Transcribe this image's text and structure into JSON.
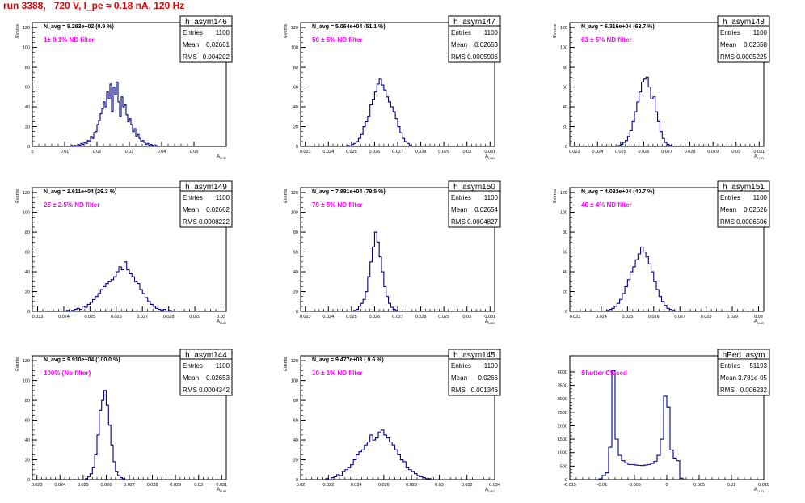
{
  "title": "run 3388,   720 V, I_pe ≈ 0.18 nA, 120 Hz",
  "colors": {
    "hist": "#000080",
    "note": "#ff00ff",
    "title": "#e00000"
  },
  "stat_labels": {
    "entries": "Entries",
    "mean": "Mean",
    "rms": "RMS"
  },
  "chart_data": [
    {
      "type": "histogram",
      "name": "h_asym146",
      "xlabel": "A_LUD",
      "ylabel": "Events",
      "xlim": [
        0,
        0.06
      ],
      "ylim": [
        0,
        125
      ],
      "xticks": [
        "0",
        "0.01",
        "0.02",
        "0.03",
        "0.04",
        "0.05"
      ],
      "yticks": [
        "0",
        "20",
        "40",
        "60",
        "80",
        "100",
        "120"
      ],
      "navg": "N_avg = 9.293e+02 (0.9 %)",
      "note": "1± 0.1% ND filter",
      "stats": {
        "entries": "1100",
        "mean": "0.02661",
        "rms": "0.004202"
      },
      "bins": {
        "x0": 0.012,
        "width": 0.0005,
        "values": [
          1,
          0,
          1,
          0,
          2,
          1,
          3,
          2,
          4,
          3,
          6,
          5,
          10,
          8,
          14,
          15,
          22,
          26,
          33,
          38,
          45,
          40,
          55,
          48,
          63,
          35,
          60,
          52,
          65,
          45,
          30,
          50,
          40,
          42,
          32,
          25,
          28,
          22,
          15,
          18,
          10,
          12,
          8,
          5,
          6,
          4,
          2,
          3,
          1,
          2,
          1,
          0,
          1
        ]
      }
    },
    {
      "type": "histogram",
      "name": "h_asym147",
      "xlabel": "A_LUD",
      "ylabel": "Events",
      "xlim": [
        0.0228,
        0.0312
      ],
      "ylim": [
        0,
        125
      ],
      "xticks": [
        "0.023",
        "0.024",
        "0.025",
        "0.026",
        "0.027",
        "0.028",
        "0.029",
        "0.03",
        "0.031"
      ],
      "yticks": [
        "0",
        "20",
        "40",
        "60",
        "80",
        "100",
        "120"
      ],
      "navg": "N_avg = 5.064e+04 (51.1 %)",
      "note": "50 ± 5% ND filter",
      "stats": {
        "entries": "1100",
        "mean": "0.02653",
        "rms": "0.0005906"
      },
      "bins": {
        "x0": 0.0248,
        "width": 0.0001,
        "values": [
          1,
          0,
          2,
          3,
          5,
          8,
          12,
          20,
          25,
          30,
          42,
          47,
          55,
          63,
          68,
          62,
          57,
          50,
          45,
          40,
          35,
          28,
          20,
          14,
          8,
          5,
          3,
          1
        ]
      }
    },
    {
      "type": "histogram",
      "name": "h_asym148",
      "xlabel": "A_LUD",
      "ylabel": "Events",
      "xlim": [
        0.0228,
        0.0312
      ],
      "ylim": [
        0,
        125
      ],
      "xticks": [
        "0.023",
        "0.024",
        "0.025",
        "0.026",
        "0.027",
        "0.028",
        "0.029",
        "0.03",
        "0.031"
      ],
      "yticks": [
        "0",
        "20",
        "40",
        "60",
        "80",
        "100",
        "120"
      ],
      "navg": "N_avg = 6.316e+04 (63.7 %)",
      "note": "63 ± 5% ND filter",
      "stats": {
        "entries": "1100",
        "mean": "0.02658",
        "rms": "0.0005225"
      },
      "bins": {
        "x0": 0.0249,
        "width": 0.0001,
        "values": [
          1,
          2,
          4,
          6,
          10,
          16,
          25,
          35,
          45,
          55,
          65,
          68,
          70,
          60,
          48,
          50,
          35,
          25,
          15,
          8,
          4,
          2,
          1
        ]
      }
    },
    {
      "type": "histogram",
      "name": "h_asym149",
      "xlabel": "A_LUD",
      "ylabel": "Events",
      "xlim": [
        0.0228,
        0.0302
      ],
      "ylim": [
        0,
        125
      ],
      "xticks": [
        "0.023",
        "0.024",
        "0.025",
        "0.026",
        "0.027",
        "0.028",
        "0.029",
        "0.03"
      ],
      "yticks": [
        "0",
        "20",
        "40",
        "60",
        "80",
        "100",
        "120"
      ],
      "navg": "N_avg = 2.611e+04 (26.3 %)",
      "note": "25 ± 2.5% ND filter",
      "stats": {
        "entries": "1100",
        "mean": "0.02662",
        "rms": "0.0008222"
      },
      "bins": {
        "x0": 0.0241,
        "width": 0.0001,
        "values": [
          1,
          0,
          1,
          2,
          3,
          2,
          5,
          4,
          7,
          9,
          12,
          15,
          18,
          22,
          25,
          28,
          30,
          32,
          35,
          40,
          45,
          42,
          50,
          42,
          38,
          35,
          30,
          28,
          22,
          18,
          14,
          10,
          7,
          5,
          3,
          2,
          1,
          2,
          0,
          1
        ]
      }
    },
    {
      "type": "histogram",
      "name": "h_asym150",
      "xlabel": "A_LUD",
      "ylabel": "Events",
      "xlim": [
        0.0228,
        0.0312
      ],
      "ylim": [
        0,
        125
      ],
      "xticks": [
        "0.023",
        "0.024",
        "0.025",
        "0.026",
        "0.027",
        "0.028",
        "0.029",
        "0.03",
        "0.031"
      ],
      "yticks": [
        "0",
        "20",
        "40",
        "60",
        "80",
        "100",
        "120"
      ],
      "navg": "N_avg = 7.881e+04 (79.5 %)",
      "note": "79 ± 5% ND filter",
      "stats": {
        "entries": "1100",
        "mean": "0.02654",
        "rms": "0.0004827"
      },
      "bins": {
        "x0": 0.0251,
        "width": 0.0001,
        "values": [
          1,
          2,
          5,
          8,
          12,
          20,
          35,
          50,
          65,
          80,
          70,
          55,
          40,
          25,
          15,
          8,
          4,
          2,
          1
        ]
      }
    },
    {
      "type": "histogram",
      "name": "h_asym151",
      "xlabel": "A_LUD",
      "ylabel": "Events",
      "xlim": [
        0.0228,
        0.0302
      ],
      "ylim": [
        0,
        125
      ],
      "xticks": [
        "0.023",
        "0.024",
        "0.025",
        "0.026",
        "0.027",
        "0.028",
        "0.029",
        "0.03"
      ],
      "yticks": [
        "0",
        "20",
        "40",
        "60",
        "80",
        "100",
        "120"
      ],
      "navg": "N_avg = 4.033e+04 (40.7 %)",
      "note": "40 ± 4% ND filter",
      "stats": {
        "entries": "1100",
        "mean": "0.02626",
        "rms": "0.0006506"
      },
      "bins": {
        "x0": 0.0242,
        "width": 0.0001,
        "values": [
          1,
          2,
          3,
          5,
          8,
          12,
          18,
          25,
          32,
          40,
          45,
          52,
          58,
          65,
          60,
          55,
          48,
          40,
          30,
          22,
          15,
          10,
          6,
          3,
          2,
          1
        ]
      }
    },
    {
      "type": "histogram",
      "name": "h_asym144",
      "xlabel": "A_LUD",
      "ylabel": "Events",
      "xlim": [
        0.0228,
        0.0312
      ],
      "ylim": [
        0,
        125
      ],
      "xticks": [
        "0.023",
        "0.024",
        "0.025",
        "0.026",
        "0.027",
        "0.028",
        "0.029",
        "0.03",
        "0.031"
      ],
      "yticks": [
        "0",
        "20",
        "40",
        "60",
        "80",
        "100",
        "120"
      ],
      "navg": "N_avg = 9.910e+04 (100.0 %)",
      "note": "100% (No filter)",
      "stats": {
        "entries": "1100",
        "mean": "0.02653",
        "rms": "0.0004342"
      },
      "bins": {
        "x0": 0.0251,
        "width": 0.0001,
        "values": [
          1,
          3,
          6,
          12,
          25,
          45,
          70,
          80,
          90,
          75,
          55,
          35,
          18,
          8,
          4,
          2,
          1
        ]
      }
    },
    {
      "type": "histogram",
      "name": "h_asym145",
      "xlabel": "A_LUD",
      "ylabel": "Events",
      "xlim": [
        0.02,
        0.034
      ],
      "ylim": [
        0,
        125
      ],
      "xticks": [
        "0.02",
        "0.022",
        "0.024",
        "0.026",
        "0.028",
        "0.03",
        "0.032",
        "0.034"
      ],
      "yticks": [
        "0",
        "20",
        "40",
        "60",
        "80",
        "100",
        "120"
      ],
      "navg": "N_avg = 9.477e+03 ( 9.6 %)",
      "note": "10 ± 1% ND filter",
      "stats": {
        "entries": "1100",
        "mean": "0.0266",
        "rms": "0.001346"
      },
      "bins": {
        "x0": 0.0218,
        "width": 0.0002,
        "values": [
          1,
          0,
          2,
          3,
          5,
          4,
          8,
          10,
          12,
          15,
          20,
          25,
          28,
          30,
          35,
          38,
          45,
          40,
          42,
          48,
          50,
          45,
          42,
          38,
          35,
          30,
          25,
          20,
          18,
          12,
          10,
          8,
          6,
          4,
          3,
          2,
          1,
          1
        ]
      }
    },
    {
      "type": "histogram",
      "name": "hPed_asym",
      "xlabel": "A_LUD",
      "ylabel": "",
      "xlim": [
        -0.015,
        0.015
      ],
      "ylim": [
        0,
        4600
      ],
      "xticks": [
        "-0.015",
        "-0.01",
        "-0.005",
        "0",
        "0.005",
        "0.01",
        "0.015"
      ],
      "yticks": [
        "0",
        "500",
        "1000",
        "1500",
        "2000",
        "2500",
        "3000",
        "3500",
        "4000"
      ],
      "navg": "",
      "note": "Shutter Closed",
      "stats": {
        "entries": "51193",
        "mean": "-3.781e-05",
        "rms": "0.006232"
      },
      "bins": {
        "x0": -0.0105,
        "width": 0.0005,
        "values": [
          30,
          150,
          250,
          1200,
          4050,
          1500,
          900,
          700,
          620,
          560,
          560,
          540,
          530,
          520,
          540,
          560,
          600,
          680,
          900,
          1500,
          3100,
          2700,
          1100,
          800,
          700,
          50
        ]
      }
    }
  ]
}
